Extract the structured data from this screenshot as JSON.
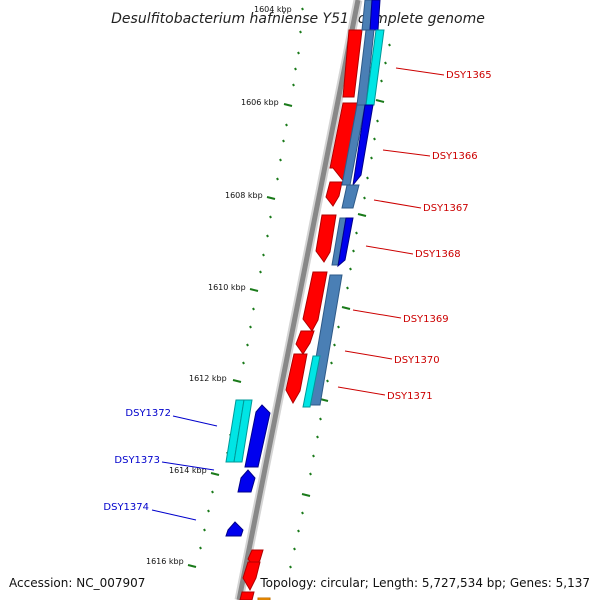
{
  "title": "Desulfitobacterium hafniense Y51, complete genome",
  "footer": {
    "accession": "Accession: NC_007907",
    "summary": "Topology: circular; Length: 5,727,534 bp; Genes: 5,137"
  },
  "colors": {
    "forward_gene": "#ff0000",
    "reverse_gene": "#0000ee",
    "cyan_feature": "#00e5e5",
    "steel_feature": "#4a7fb5",
    "backbone": "#888888",
    "tick": "#1a7a1a",
    "label_red": "#cc0000",
    "label_blue": "#0000cc",
    "orange_feature": "#ff9900"
  },
  "scale_labels": [
    {
      "id": "1604",
      "text": "1604 kbp"
    },
    {
      "id": "1606",
      "text": "1606 kbp"
    },
    {
      "id": "1608",
      "text": "1608 kbp"
    },
    {
      "id": "1610",
      "text": "1610 kbp"
    },
    {
      "id": "1612",
      "text": "1612 kbp"
    },
    {
      "id": "1614",
      "text": "1614 kbp"
    },
    {
      "id": "1616",
      "text": "1616 kbp"
    }
  ],
  "gene_labels": [
    {
      "id": "DSY1365",
      "text": "DSY1365",
      "strand": "forward"
    },
    {
      "id": "DSY1366",
      "text": "DSY1366",
      "strand": "forward"
    },
    {
      "id": "DSY1367",
      "text": "DSY1367",
      "strand": "forward"
    },
    {
      "id": "DSY1368",
      "text": "DSY1368",
      "strand": "forward"
    },
    {
      "id": "DSY1369",
      "text": "DSY1369",
      "strand": "forward"
    },
    {
      "id": "DSY1370",
      "text": "DSY1370",
      "strand": "forward"
    },
    {
      "id": "DSY1371",
      "text": "DSY1371",
      "strand": "forward"
    },
    {
      "id": "DSY1372",
      "text": "DSY1372",
      "strand": "reverse"
    },
    {
      "id": "DSY1373",
      "text": "DSY1373",
      "strand": "reverse"
    },
    {
      "id": "DSY1374",
      "text": "DSY1374",
      "strand": "reverse"
    }
  ]
}
